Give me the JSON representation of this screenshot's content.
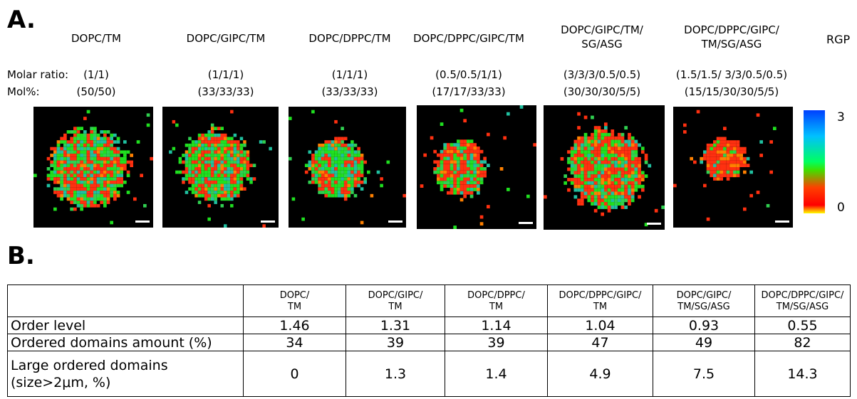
{
  "panel_a": {
    "label": "A.",
    "row_labels": [
      "Molar ratio:",
      "Mol%:"
    ],
    "columns": [
      {
        "title": "DOPC/TM",
        "molar_ratio": "(1/1)",
        "mol_percent": "(50/50)"
      },
      {
        "title": "DOPC/GIPC/TM",
        "molar_ratio": "(1/1/1)",
        "mol_percent": "(33/33/33)"
      },
      {
        "title": "DOPC/DPPC/TM",
        "molar_ratio": "(1/1/1)",
        "mol_percent": "(33/33/33)"
      },
      {
        "title": "DOPC/DPPC/GIPC/TM",
        "molar_ratio": "(0.5/0.5/1/1)",
        "mol_percent": "(17/17/33/33)"
      },
      {
        "title": "DOPC/GIPC/TM/\nSG/ASG",
        "molar_ratio": "(3/3/3/0.5/0.5)",
        "mol_percent": "(30/30/30/5/5)"
      },
      {
        "title": "DOPC/DPPC/GIPC/\nTM/SG/ASG",
        "molar_ratio": "(1.5/1.5/ 3/3/0.5/0.5)",
        "mol_percent": "(15/15/30/30/5/5)"
      }
    ],
    "colorbar": {
      "label": "RGP",
      "max": 3,
      "min": 0
    }
  },
  "panel_b": {
    "label": "B.",
    "table": {
      "header": [
        "",
        "DOPC/\nTM",
        "DOPC/GIPC/\nTM",
        "DOPC/DPPC/\nTM",
        "DOPC/DPPC/GIPC/\nTM",
        "DOPC/GIPC/\nTM/SG/ASG",
        "DOPC/DPPC/GIPC/\nTM/SG/ASG"
      ],
      "rows": [
        [
          "Order level",
          1.46,
          1.31,
          1.14,
          1.04,
          0.93,
          0.55
        ],
        [
          "Ordered domains amount (%)",
          34,
          39,
          39,
          47,
          49,
          82
        ],
        [
          "Large ordered domains\n(size>2μm, %)",
          0,
          1.3,
          1.4,
          4.9,
          7.5,
          14.3
        ]
      ]
    }
  }
}
